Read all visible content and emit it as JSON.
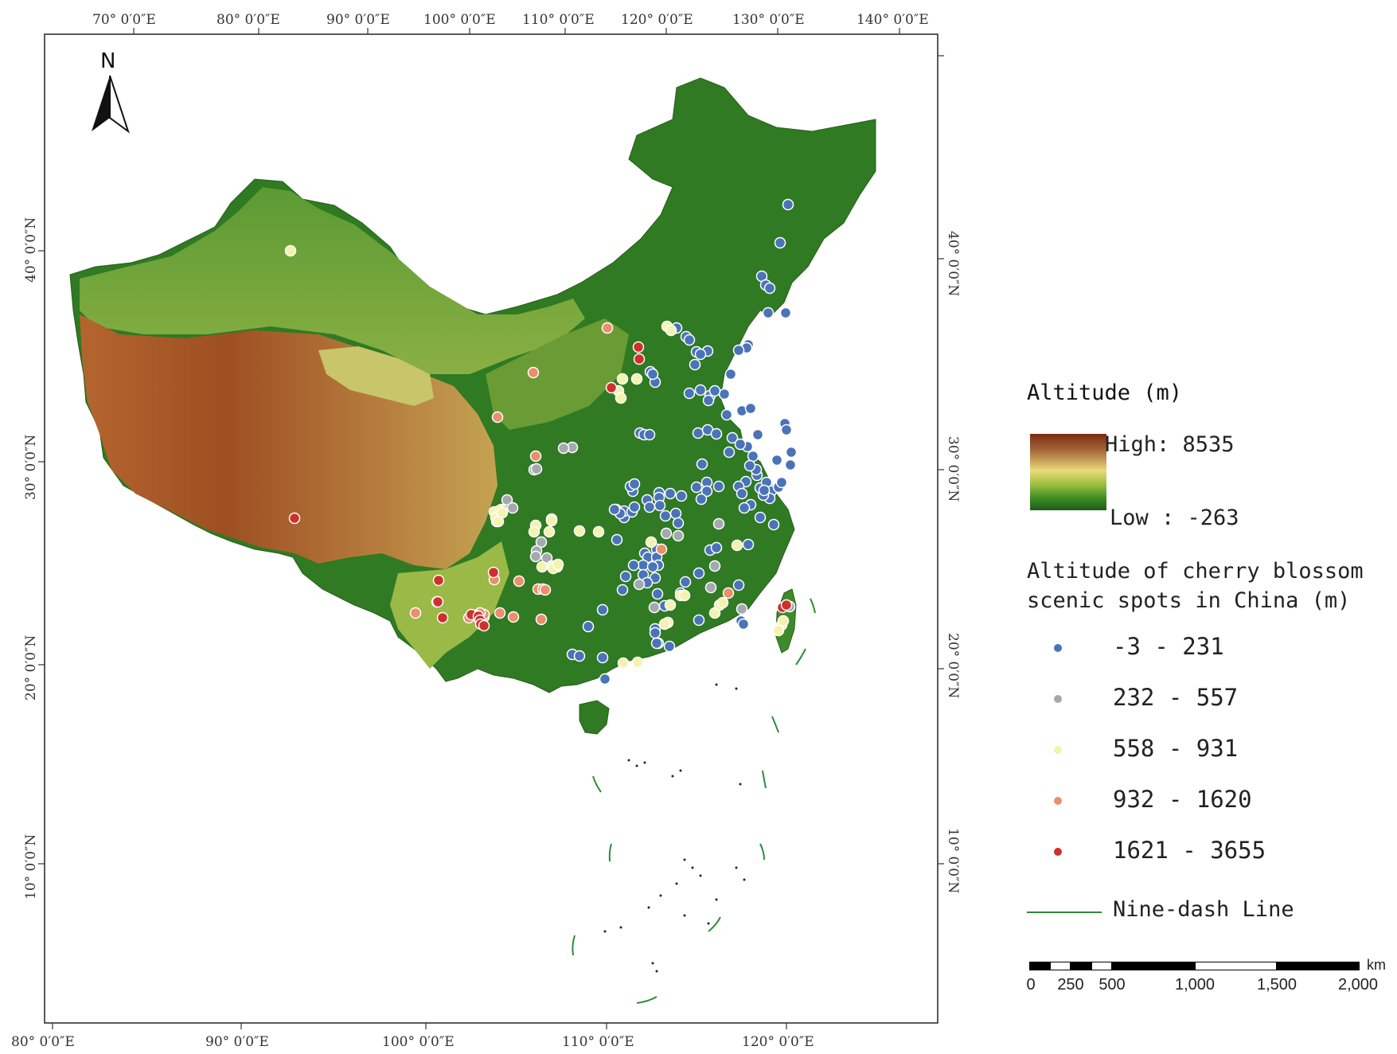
{
  "top_longitude_labels": [
    "70° 0′0″E",
    "80° 0′0″E",
    "90° 0′0″E",
    "100° 0′0″E",
    "110° 0′0″E",
    "120° 0′0″E",
    "130° 0′0″E",
    "140° 0′0″E"
  ],
  "bottom_longitude_labels": [
    "80° 0′0″E",
    "90° 0′0″E",
    "100° 0′0″E",
    "110° 0′0″E",
    "120° 0′0″E"
  ],
  "left_latitude_labels": [
    "40° 0′0″N",
    "30° 0′0″N",
    "20° 0′0″N",
    "10° 0′0″N"
  ],
  "right_latitude_labels": [
    "40° 0′0″N",
    "30° 0′0″N",
    "20° 0′0″N",
    "10° 0′0″N"
  ],
  "north_arrow_label": "N",
  "legend": {
    "altitude_title": "Altitude (m)",
    "altitude_high": "High: 8535",
    "altitude_low": "Low : -263",
    "spots_title_line1": "Altitude of cherry blossom",
    "spots_title_line2": "scenic spots in China (m)",
    "classes": [
      {
        "label": "-3 - 231",
        "color": "#4a73b8"
      },
      {
        "label": "232 - 557",
        "color": "#a4a9b0"
      },
      {
        "label": "558 - 931",
        "color": "#f3f3b0"
      },
      {
        "label": "932 - 1620",
        "color": "#ea8f69"
      },
      {
        "label": "1621 - 3655",
        "color": "#d0302b"
      }
    ],
    "nine_dash_label": "Nine-dash Line",
    "nine_dash_color": "#2e8b3a"
  },
  "scale_bar": {
    "labels": [
      "0",
      "250",
      "500",
      "1,000",
      "1,500",
      "2,000"
    ],
    "unit": "km"
  },
  "terrain_colors": {
    "high": "#7a2a12",
    "mid": "#e9da7a",
    "low": "#1d5e1a"
  }
}
